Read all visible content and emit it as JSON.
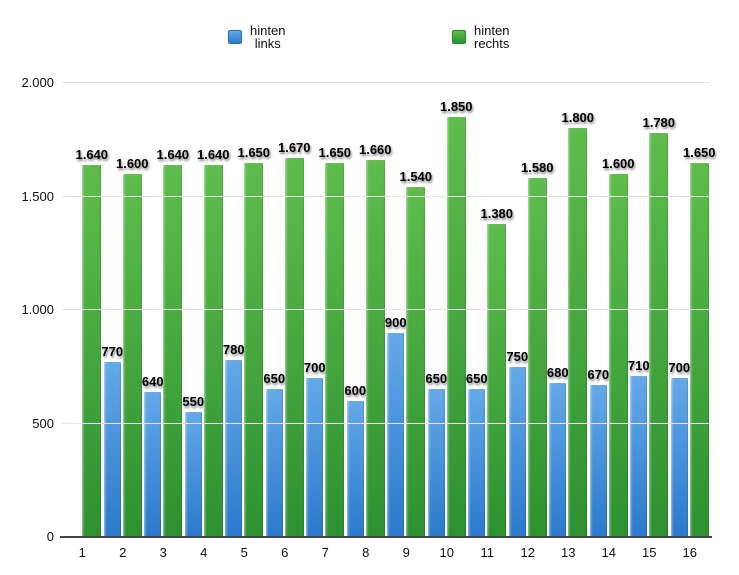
{
  "chart_data": {
    "type": "bar",
    "title": "",
    "xlabel": "",
    "ylabel": "",
    "grid": true,
    "legend_position": "top",
    "value_label_format": "de-thousands",
    "categories": [
      "1",
      "2",
      "3",
      "4",
      "5",
      "6",
      "7",
      "8",
      "9",
      "10",
      "11",
      "12",
      "13",
      "14",
      "15",
      "16"
    ],
    "series": [
      {
        "name": "hinten links",
        "legend_lines": [
          "hinten",
          "links"
        ],
        "color_top": "#64a9e8",
        "color_bottom": "#2b79cc",
        "values": [
          null,
          770,
          640,
          550,
          780,
          650,
          700,
          600,
          900,
          650,
          650,
          750,
          680,
          670,
          710,
          700
        ]
      },
      {
        "name": "hinten rechts",
        "legend_lines": [
          "hinten",
          "rechts"
        ],
        "color_top": "#5ebd4c",
        "color_bottom": "#2d9130",
        "values": [
          1640,
          1600,
          1640,
          1640,
          1650,
          1670,
          1650,
          1660,
          1540,
          1850,
          1380,
          1580,
          1800,
          1600,
          1780,
          1650
        ]
      }
    ],
    "y_axis": {
      "min": 0,
      "max": 2000,
      "ticks": [
        {
          "value": 0,
          "label": "0"
        },
        {
          "value": 500,
          "label": "500"
        },
        {
          "value": 1000,
          "label": "1.000"
        },
        {
          "value": 1500,
          "label": "1.500"
        },
        {
          "value": 2000,
          "label": "2.000"
        }
      ]
    }
  }
}
